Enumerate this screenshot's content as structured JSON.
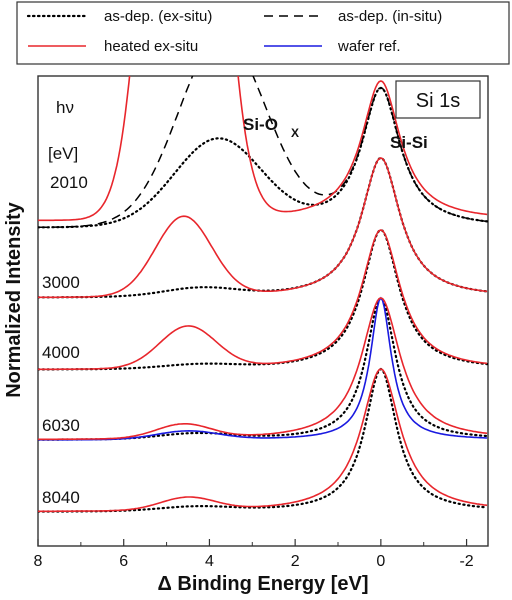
{
  "chart_data": {
    "type": "line",
    "xlabel": "Δ Binding Energy [eV]",
    "ylabel": "Normalized Intensity",
    "xlim": [
      8,
      -2.5
    ],
    "x_ticks": [
      8,
      6,
      4,
      2,
      0,
      -2
    ],
    "x_tick_labels": [
      "8",
      "6",
      "4",
      "2",
      "0",
      "-2"
    ],
    "x_reversed": true,
    "legend": {
      "placement": "top",
      "entries": [
        {
          "label": "as-dep. (ex-situ)",
          "color": "#000000",
          "style": "dotted"
        },
        {
          "label": "as-dep. (in-situ)",
          "color": "#000000",
          "style": "dashed"
        },
        {
          "label": "heated ex-situ",
          "color": "#e8262c",
          "style": "solid"
        },
        {
          "label": "wafer ref.",
          "color": "#1a1ae0",
          "style": "solid"
        }
      ]
    },
    "annotations": {
      "core_level": "Si 1s",
      "hv_label": "hν",
      "hv_unit": "[eV]",
      "siox_main": "Si-O",
      "siox_sub": "X",
      "sisi": "Si-Si"
    },
    "spectra": [
      {
        "hv": "2010",
        "series": [
          {
            "name": "as-dep. (ex-situ)",
            "style": "dotted",
            "color": "#000000",
            "oxide_height": 0.62,
            "oxide_center": 3.8,
            "oxide_width": 2.4,
            "si_height": 1.0,
            "si_width": 0.55,
            "baseline": 0.0
          },
          {
            "name": "as-dep. (in-situ)",
            "style": "dashed",
            "color": "#000000",
            "oxide_height": 1.35,
            "oxide_center": 3.7,
            "oxide_width": 2.4,
            "si_height": 1.0,
            "si_width": 0.55,
            "baseline": 0.0
          },
          {
            "name": "heated ex-situ",
            "style": "solid",
            "color": "#e8262c",
            "oxide_height": 6.5,
            "oxide_center": 4.6,
            "oxide_width": 1.55,
            "si_height": 1.0,
            "si_width": 0.55,
            "baseline": 0.05
          }
        ]
      },
      {
        "hv": "3000",
        "series": [
          {
            "name": "as-dep. (ex-situ)",
            "style": "dotted",
            "color": "#000000",
            "oxide_height": 0.06,
            "oxide_center": 4.2,
            "oxide_width": 2.0,
            "si_height": 1.0,
            "si_width": 0.55,
            "baseline": 0.0
          },
          {
            "name": "heated ex-situ",
            "style": "solid",
            "color": "#e8262c",
            "oxide_height": 0.57,
            "oxide_center": 4.6,
            "oxide_width": 1.55,
            "si_height": 1.0,
            "si_width": 0.55,
            "baseline": 0.0
          }
        ]
      },
      {
        "hv": "4000",
        "series": [
          {
            "name": "as-dep. (ex-situ)",
            "style": "dotted",
            "color": "#000000",
            "oxide_height": 0.03,
            "oxide_center": 4.2,
            "oxide_width": 2.0,
            "si_height": 1.0,
            "si_width": 0.52,
            "baseline": 0.0
          },
          {
            "name": "heated ex-situ",
            "style": "solid",
            "color": "#e8262c",
            "oxide_height": 0.3,
            "oxide_center": 4.5,
            "oxide_width": 1.55,
            "si_height": 1.0,
            "si_width": 0.55,
            "baseline": 0.0
          }
        ]
      },
      {
        "hv": "6030",
        "series": [
          {
            "name": "as-dep. (ex-situ)",
            "style": "dotted",
            "color": "#000000",
            "oxide_height": 0.04,
            "oxide_center": 4.3,
            "oxide_width": 2.0,
            "si_height": 1.0,
            "si_width": 0.42,
            "baseline": 0.0
          },
          {
            "name": "wafer ref.",
            "style": "solid",
            "color": "#1a1ae0",
            "oxide_height": 0.06,
            "oxide_center": 4.5,
            "oxide_width": 1.7,
            "si_height": 1.0,
            "si_width": 0.3,
            "baseline": 0.0
          },
          {
            "name": "heated ex-situ",
            "style": "solid",
            "color": "#e8262c",
            "oxide_height": 0.1,
            "oxide_center": 4.6,
            "oxide_width": 1.5,
            "si_height": 1.0,
            "si_width": 0.55,
            "baseline": 0.0
          }
        ]
      },
      {
        "hv": "8040",
        "series": [
          {
            "name": "as-dep. (ex-situ)",
            "style": "dotted",
            "color": "#000000",
            "oxide_height": 0.03,
            "oxide_center": 4.3,
            "oxide_width": 2.0,
            "si_height": 1.0,
            "si_width": 0.45,
            "baseline": 0.0
          },
          {
            "name": "heated ex-situ",
            "style": "solid",
            "color": "#e8262c",
            "oxide_height": 0.09,
            "oxide_center": 4.5,
            "oxide_width": 1.5,
            "si_height": 1.0,
            "si_width": 0.55,
            "baseline": 0.0
          }
        ]
      }
    ]
  }
}
